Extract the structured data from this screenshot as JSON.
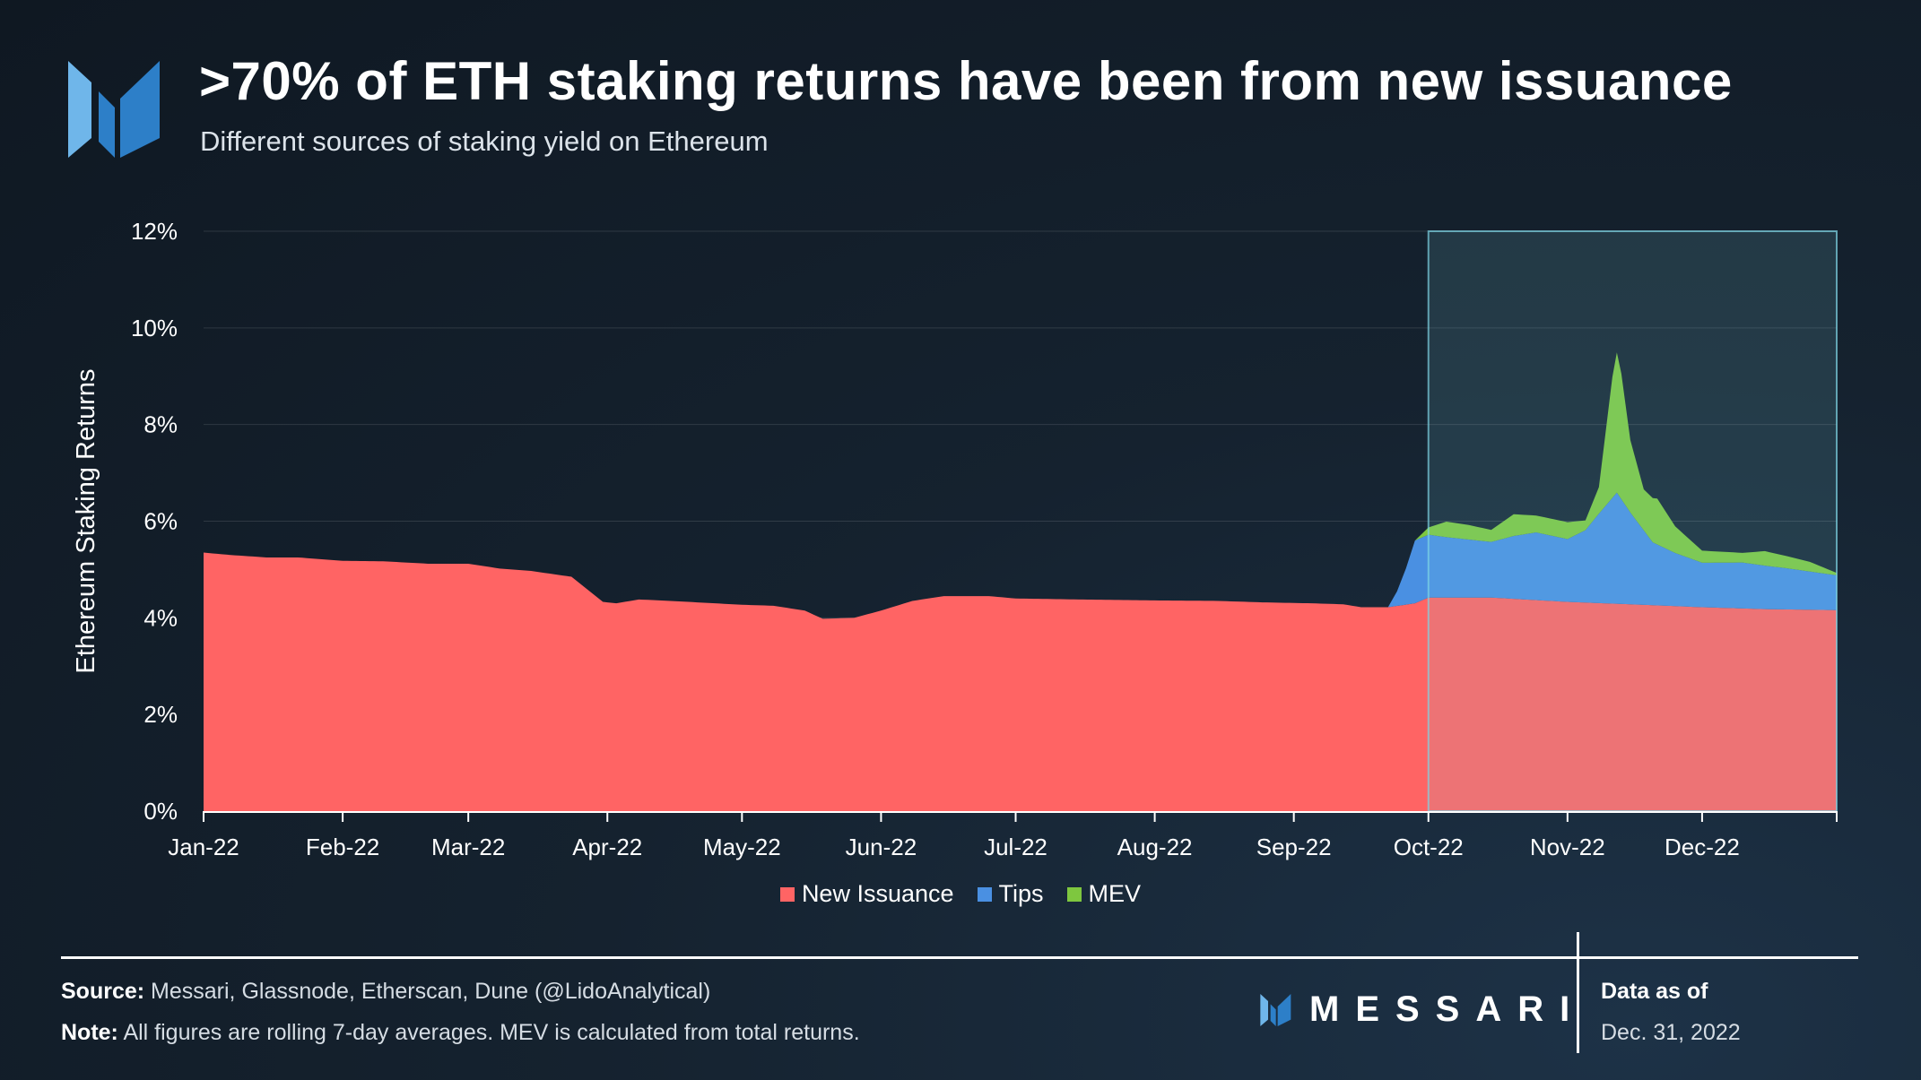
{
  "header": {
    "title": ">70% of ETH staking returns have been from new issuance",
    "subtitle": "Different sources of staking yield on Ethereum"
  },
  "footer": {
    "source_label": "Source:",
    "source_text": " Messari, Glassnode, Etherscan, Dune (@LidoAnalytical)",
    "note_label": "Note:",
    "note_text": " All figures are rolling 7-day averages. MEV is calculated from total returns.",
    "brand": "MESSARI",
    "data_as_of_label": "Data as of",
    "data_as_of_date": "Dec. 31, 2022"
  },
  "colors": {
    "new_issuance": "#ff6464",
    "tips": "#4a90e2",
    "mev": "#7ec73f",
    "highlight_fill": "#7fd6e6",
    "logo_light": "#6fb6ea",
    "logo_dark": "#2d7fc8"
  },
  "chart_data": {
    "type": "area",
    "stacked": true,
    "title": ">70% of ETH staking returns have been from new issuance",
    "subtitle": "Different sources of staking yield on Ethereum",
    "xlabel": "",
    "ylabel": "Ethereum Staking Returns",
    "ylim": [
      0,
      12
    ],
    "y_unit": "%",
    "y_ticks": [
      "0%",
      "2%",
      "4%",
      "6%",
      "8%",
      "10%",
      "12%"
    ],
    "x_ticks": [
      "Jan-22",
      "Feb-22",
      "Mar-22",
      "Apr-22",
      "May-22",
      "Jun-22",
      "Jul-22",
      "Aug-22",
      "Sep-22",
      "Oct-22",
      "Nov-22",
      "Dec-22"
    ],
    "x_range": [
      "2022-01-01",
      "2022-12-31"
    ],
    "highlight_range": [
      "2022-10-01",
      "2022-12-31"
    ],
    "grid": true,
    "legend_position": "bottom",
    "series": [
      {
        "name": "New Issuance",
        "points": [
          [
            "2022-01-01",
            5.35
          ],
          [
            "2022-01-07",
            5.3
          ],
          [
            "2022-01-15",
            5.25
          ],
          [
            "2022-01-22",
            5.25
          ],
          [
            "2022-02-01",
            5.18
          ],
          [
            "2022-02-10",
            5.17
          ],
          [
            "2022-02-20",
            5.12
          ],
          [
            "2022-03-01",
            5.12
          ],
          [
            "2022-03-08",
            5.02
          ],
          [
            "2022-03-15",
            4.97
          ],
          [
            "2022-03-24",
            4.85
          ],
          [
            "2022-03-31",
            4.33
          ],
          [
            "2022-04-03",
            4.3
          ],
          [
            "2022-04-08",
            4.38
          ],
          [
            "2022-04-15",
            4.35
          ],
          [
            "2022-04-25",
            4.3
          ],
          [
            "2022-05-01",
            4.27
          ],
          [
            "2022-05-08",
            4.25
          ],
          [
            "2022-05-15",
            4.15
          ],
          [
            "2022-05-19",
            3.98
          ],
          [
            "2022-05-26",
            4.0
          ],
          [
            "2022-06-01",
            4.15
          ],
          [
            "2022-06-08",
            4.35
          ],
          [
            "2022-06-15",
            4.45
          ],
          [
            "2022-06-25",
            4.45
          ],
          [
            "2022-07-01",
            4.4
          ],
          [
            "2022-07-15",
            4.38
          ],
          [
            "2022-08-01",
            4.36
          ],
          [
            "2022-08-15",
            4.35
          ],
          [
            "2022-08-25",
            4.32
          ],
          [
            "2022-09-05",
            4.3
          ],
          [
            "2022-09-12",
            4.28
          ],
          [
            "2022-09-16",
            4.22
          ],
          [
            "2022-09-22",
            4.22
          ],
          [
            "2022-09-28",
            4.3
          ],
          [
            "2022-10-01",
            4.42
          ],
          [
            "2022-10-15",
            4.42
          ],
          [
            "2022-11-01",
            4.33
          ],
          [
            "2022-11-15",
            4.28
          ],
          [
            "2022-12-01",
            4.22
          ],
          [
            "2022-12-15",
            4.18
          ],
          [
            "2022-12-31",
            4.16
          ]
        ]
      },
      {
        "name": "Tips",
        "points": [
          [
            "2022-01-01",
            0
          ],
          [
            "2022-09-16",
            0
          ],
          [
            "2022-09-22",
            0
          ],
          [
            "2022-09-24",
            0.3
          ],
          [
            "2022-09-26",
            0.75
          ],
          [
            "2022-09-28",
            1.3
          ],
          [
            "2022-10-01",
            1.3
          ],
          [
            "2022-10-05",
            1.25
          ],
          [
            "2022-10-10",
            1.2
          ],
          [
            "2022-10-15",
            1.15
          ],
          [
            "2022-10-20",
            1.3
          ],
          [
            "2022-10-25",
            1.4
          ],
          [
            "2022-11-01",
            1.3
          ],
          [
            "2022-11-05",
            1.5
          ],
          [
            "2022-11-08",
            1.85
          ],
          [
            "2022-11-12",
            2.3
          ],
          [
            "2022-11-15",
            1.9
          ],
          [
            "2022-11-20",
            1.3
          ],
          [
            "2022-11-25",
            1.1
          ],
          [
            "2022-12-01",
            0.92
          ],
          [
            "2022-12-10",
            0.95
          ],
          [
            "2022-12-20",
            0.85
          ],
          [
            "2022-12-31",
            0.72
          ]
        ]
      },
      {
        "name": "MEV",
        "points": [
          [
            "2022-01-01",
            0
          ],
          [
            "2022-09-28",
            0
          ],
          [
            "2022-10-01",
            0.15
          ],
          [
            "2022-10-05",
            0.32
          ],
          [
            "2022-10-10",
            0.3
          ],
          [
            "2022-10-15",
            0.25
          ],
          [
            "2022-10-20",
            0.45
          ],
          [
            "2022-10-25",
            0.35
          ],
          [
            "2022-11-01",
            0.35
          ],
          [
            "2022-11-05",
            0.2
          ],
          [
            "2022-11-08",
            0.55
          ],
          [
            "2022-11-11",
            2.5
          ],
          [
            "2022-11-12",
            2.9
          ],
          [
            "2022-11-13",
            2.6
          ],
          [
            "2022-11-15",
            1.5
          ],
          [
            "2022-11-18",
            0.85
          ],
          [
            "2022-11-21",
            0.95
          ],
          [
            "2022-11-25",
            0.55
          ],
          [
            "2022-12-01",
            0.25
          ],
          [
            "2022-12-10",
            0.2
          ],
          [
            "2022-12-15",
            0.3
          ],
          [
            "2022-12-20",
            0.25
          ],
          [
            "2022-12-25",
            0.2
          ],
          [
            "2022-12-31",
            0.05
          ]
        ]
      }
    ]
  }
}
